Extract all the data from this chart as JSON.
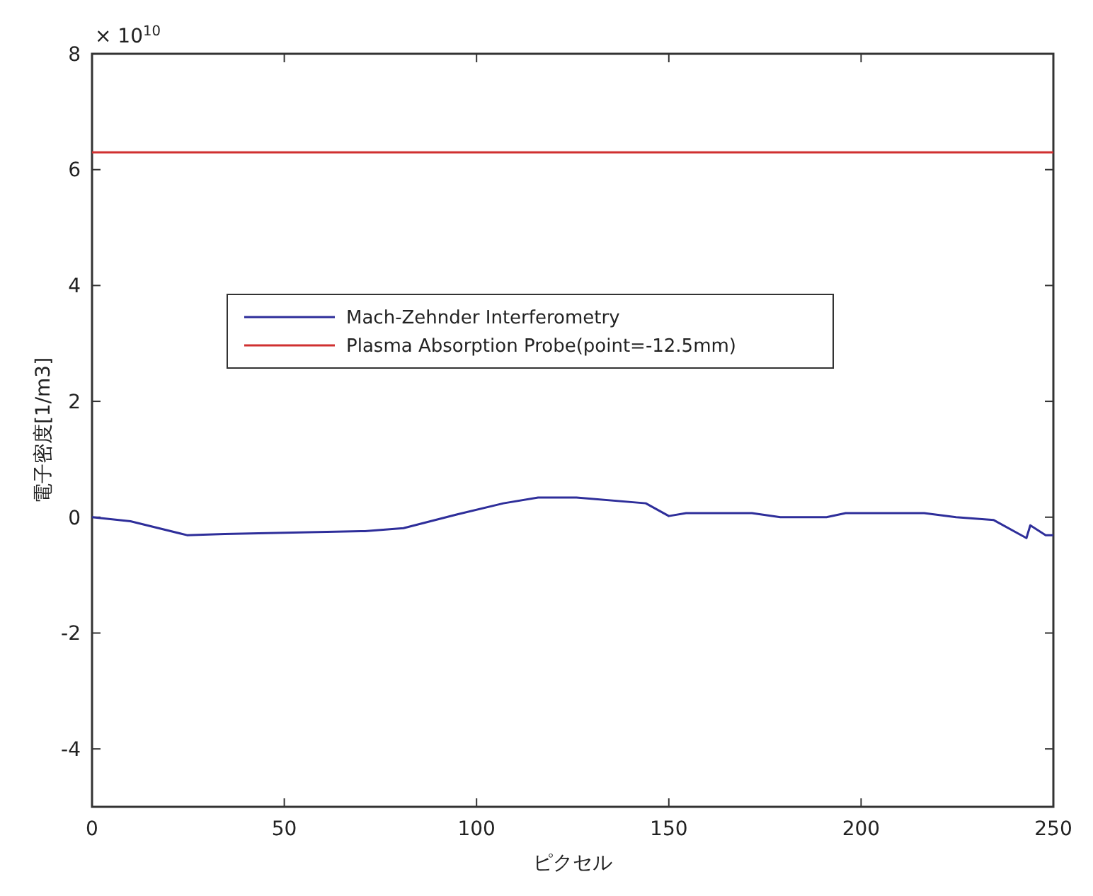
{
  "chart_data": {
    "type": "line",
    "xlabel": "ピクセル",
    "ylabel": "電子密度[1/m3]",
    "annotations": [
      "× 10$^{10}$"
    ],
    "xlim": [
      0,
      250
    ],
    "xticks": [
      0,
      50,
      100,
      150,
      200,
      250
    ],
    "ylim": [
      -5,
      8
    ],
    "yticks": [
      -4,
      -2,
      0,
      2,
      4,
      6,
      8
    ],
    "grid": false,
    "legend": "center",
    "marker": "none",
    "line_style": "solid",
    "series": [
      {
        "name": "Mach-Zehnder Interferometry",
        "color": "#2e2e9a",
        "x": [
          0,
          10,
          24.7,
          34.5,
          71,
          81,
          95,
          107,
          116,
          122,
          126,
          144,
          150,
          154.5,
          171.6,
          179,
          191,
          196,
          216.4,
          224.7,
          234.5,
          243,
          244,
          248,
          250
        ],
        "values": [
          0,
          -0.07,
          -0.31,
          -0.29,
          -0.24,
          -0.19,
          0.05,
          0.24,
          0.34,
          0.34,
          0.34,
          0.24,
          0.02,
          0.07,
          0.07,
          0,
          0,
          0.07,
          0.07,
          0,
          -0.05,
          -0.36,
          -0.14,
          -0.31,
          -0.31
        ]
      },
      {
        "name": "Plasma Absorption Probe(point=-12.5mm)",
        "color": "#d03030",
        "x": [
          0,
          250
        ],
        "values": [
          6.3,
          6.3
        ]
      }
    ]
  }
}
